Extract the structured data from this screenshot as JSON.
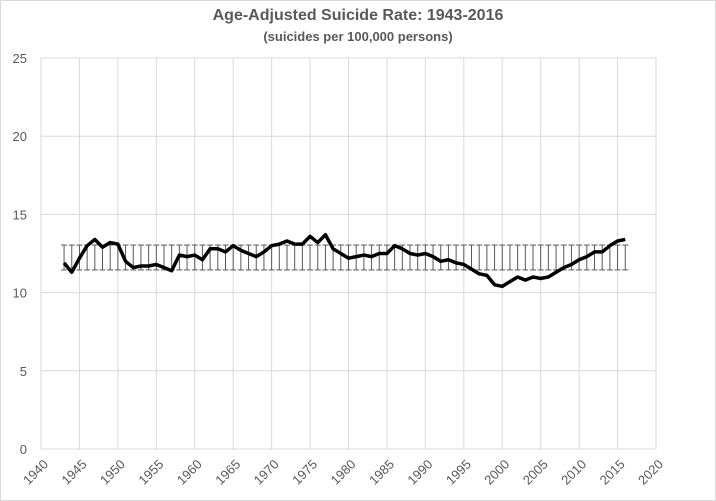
{
  "chart_data": {
    "type": "line",
    "title": "Age-Adjusted Suicide Rate: 1943-2016",
    "subtitle": "(suicides per 100,000 persons)",
    "xlabel": "",
    "ylabel": "",
    "xlim": [
      1940,
      2020
    ],
    "ylim": [
      0,
      25
    ],
    "xticks": [
      1940,
      1945,
      1950,
      1955,
      1960,
      1965,
      1970,
      1975,
      1980,
      1985,
      1990,
      1995,
      2000,
      2005,
      2010,
      2015,
      2020
    ],
    "yticks": [
      0,
      5,
      10,
      15,
      20,
      25
    ],
    "grid": true,
    "legend": "none",
    "band": {
      "low": 11.45,
      "high": 13.04,
      "style": "high-low lines per year"
    },
    "x": [
      1943,
      1944,
      1945,
      1946,
      1947,
      1948,
      1949,
      1950,
      1951,
      1952,
      1953,
      1954,
      1955,
      1956,
      1957,
      1958,
      1959,
      1960,
      1961,
      1962,
      1963,
      1964,
      1965,
      1966,
      1967,
      1968,
      1969,
      1970,
      1971,
      1972,
      1973,
      1974,
      1975,
      1976,
      1977,
      1978,
      1979,
      1980,
      1981,
      1982,
      1983,
      1984,
      1985,
      1986,
      1987,
      1988,
      1989,
      1990,
      1991,
      1992,
      1993,
      1994,
      1995,
      1996,
      1997,
      1998,
      1999,
      2000,
      2001,
      2002,
      2003,
      2004,
      2005,
      2006,
      2007,
      2008,
      2009,
      2010,
      2011,
      2012,
      2013,
      2014,
      2015,
      2016
    ],
    "values": [
      11.9,
      11.3,
      12.2,
      13.0,
      13.4,
      12.9,
      13.2,
      13.1,
      12.0,
      11.6,
      11.7,
      11.7,
      11.8,
      11.6,
      11.4,
      12.4,
      12.3,
      12.4,
      12.1,
      12.8,
      12.8,
      12.6,
      13.0,
      12.7,
      12.5,
      12.3,
      12.6,
      13.0,
      13.1,
      13.3,
      13.1,
      13.1,
      13.6,
      13.2,
      13.7,
      12.8,
      12.5,
      12.2,
      12.3,
      12.4,
      12.3,
      12.5,
      12.5,
      13.0,
      12.8,
      12.5,
      12.4,
      12.5,
      12.3,
      12.0,
      12.1,
      11.9,
      11.8,
      11.5,
      11.2,
      11.1,
      10.5,
      10.4,
      10.7,
      11.0,
      10.8,
      11.0,
      10.9,
      11.0,
      11.3,
      11.6,
      11.8,
      12.1,
      12.3,
      12.6,
      12.6,
      13.0,
      13.3,
      13.4
    ],
    "colors": {
      "line": "#000000",
      "band": "#595959",
      "grid": "#d9d9d9",
      "text": "#595959"
    }
  }
}
